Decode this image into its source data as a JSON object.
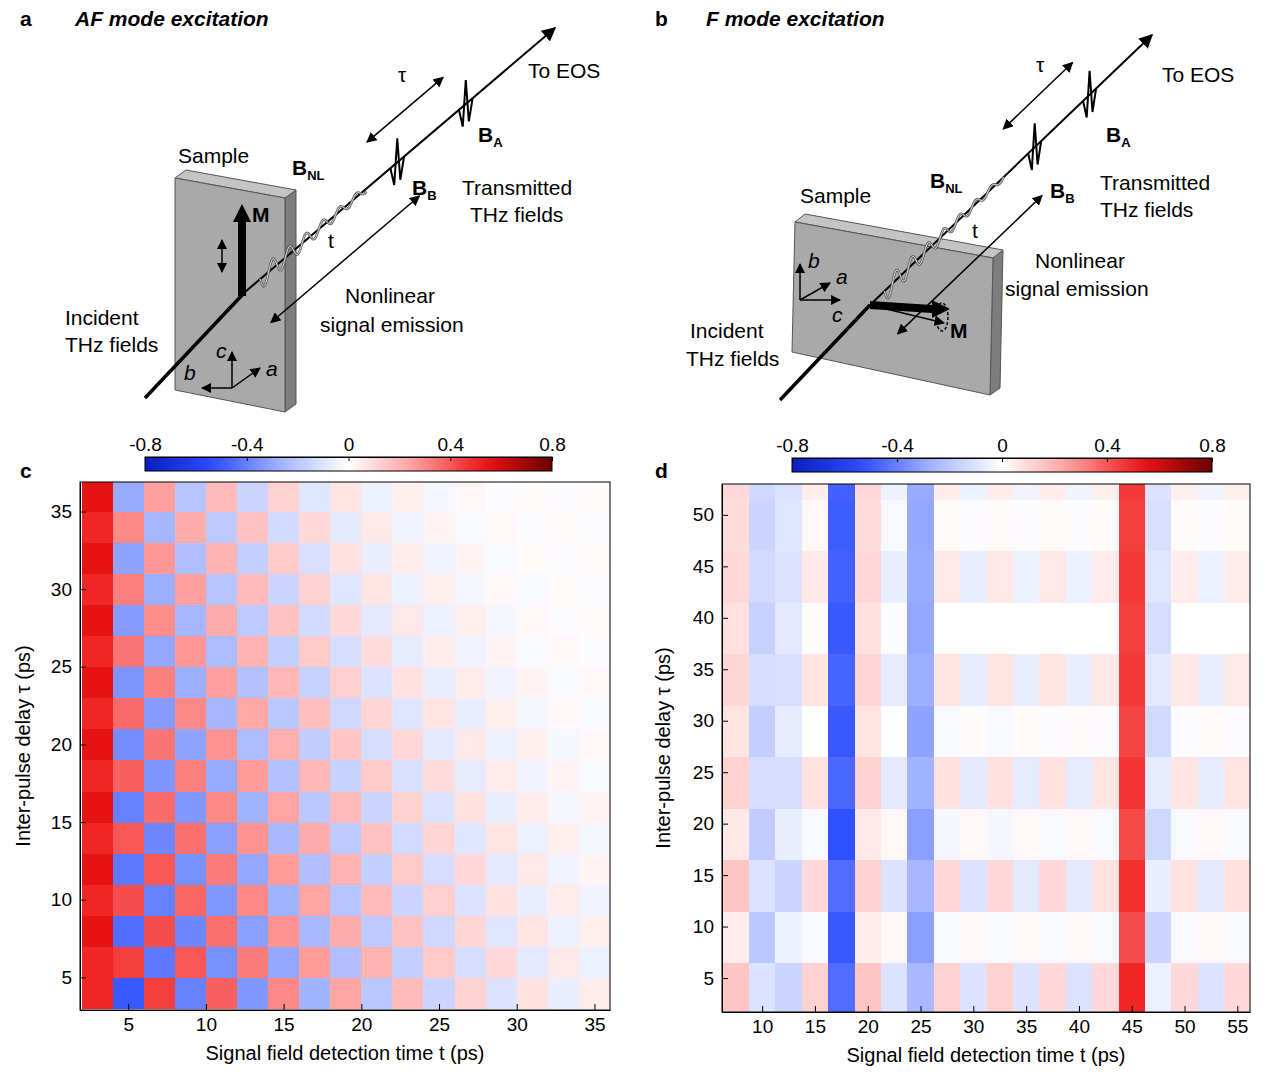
{
  "diagrams": [
    {
      "panel_label": "a",
      "title": "AF mode excitation",
      "sample": "Sample",
      "magnetization": "M",
      "fields": [
        {
          "symbol": "B",
          "sub": "NL"
        },
        {
          "symbol": "B",
          "sub": "B"
        },
        {
          "symbol": "B",
          "sub": "A"
        }
      ],
      "delay": "τ",
      "time": "t",
      "detector": "To EOS",
      "transmitted": [
        "Transmitted",
        "THz fields"
      ],
      "nonlinear": [
        "Nonlinear",
        "signal emission"
      ],
      "incident": [
        "Incident",
        "THz fields"
      ],
      "crystal_axes": [
        "a",
        "b",
        "c"
      ]
    },
    {
      "panel_label": "b",
      "title": "F mode excitation",
      "sample": "Sample",
      "magnetization": "M",
      "fields": [
        {
          "symbol": "B",
          "sub": "NL"
        },
        {
          "symbol": "B",
          "sub": "B"
        },
        {
          "symbol": "B",
          "sub": "A"
        }
      ],
      "delay": "τ",
      "time": "t",
      "detector": "To EOS",
      "transmitted": [
        "Transmitted",
        "THz fields"
      ],
      "nonlinear": [
        "Nonlinear",
        "signal emission"
      ],
      "incident": [
        "Incident",
        "THz fields"
      ],
      "crystal_axes": [
        "a",
        "b",
        "c"
      ]
    }
  ],
  "chart_data": [
    {
      "type": "heatmap",
      "panel_label": "c",
      "x_label": "Signal field detection time t (ps)",
      "y_label": "Inter-pulse delay τ (ps)",
      "xlim": [
        1.9,
        36
      ],
      "ylim": [
        2.9,
        36.9
      ],
      "xticks": [
        5,
        10,
        15,
        20,
        25,
        30,
        35
      ],
      "yticks": [
        5,
        10,
        15,
        20,
        25,
        30,
        35
      ],
      "x": [
        3,
        5,
        7,
        9,
        11,
        13,
        15,
        17,
        19,
        21,
        23,
        25,
        27,
        29,
        31,
        33,
        35
      ],
      "y": [
        4,
        6,
        8,
        10,
        12,
        14,
        16,
        18,
        20,
        22,
        24,
        26,
        28,
        30,
        32,
        34,
        36
      ],
      "values": [
        [
          0.5,
          -0.5,
          0.45,
          -0.4,
          0.38,
          -0.34,
          0.3,
          -0.27,
          0.24,
          -0.2,
          0.18,
          -0.15,
          0.12,
          -0.1,
          0.08,
          -0.06,
          0.05
        ],
        [
          0.5,
          0.45,
          -0.42,
          0.4,
          -0.36,
          0.33,
          -0.3,
          0.26,
          -0.23,
          0.2,
          -0.17,
          0.14,
          -0.12,
          0.1,
          -0.08,
          0.06,
          -0.05
        ],
        [
          0.55,
          -0.45,
          0.42,
          -0.38,
          0.35,
          -0.32,
          0.28,
          -0.25,
          0.22,
          -0.19,
          0.16,
          -0.14,
          0.11,
          -0.09,
          0.07,
          -0.05,
          0.04
        ],
        [
          0.5,
          0.42,
          -0.4,
          0.37,
          -0.34,
          0.3,
          -0.27,
          0.24,
          -0.21,
          0.18,
          -0.15,
          0.13,
          -0.1,
          0.08,
          -0.06,
          0.05,
          -0.04
        ],
        [
          0.55,
          -0.42,
          0.4,
          -0.36,
          0.33,
          -0.3,
          0.26,
          -0.23,
          0.2,
          -0.17,
          0.14,
          -0.12,
          0.1,
          -0.08,
          0.06,
          -0.04,
          0.03
        ],
        [
          0.5,
          0.4,
          -0.38,
          0.35,
          -0.32,
          0.28,
          -0.25,
          0.22,
          -0.19,
          0.16,
          -0.13,
          0.11,
          -0.09,
          0.07,
          -0.05,
          0.04,
          -0.03
        ],
        [
          0.55,
          -0.4,
          0.36,
          -0.34,
          0.3,
          -0.27,
          0.24,
          -0.2,
          0.18,
          -0.15,
          0.12,
          -0.1,
          0.08,
          -0.06,
          0.05,
          -0.03,
          0.03
        ],
        [
          0.5,
          0.38,
          -0.35,
          0.32,
          -0.29,
          0.26,
          -0.22,
          0.19,
          -0.16,
          0.14,
          -0.11,
          0.09,
          -0.07,
          0.05,
          -0.04,
          0.03,
          -0.02
        ],
        [
          0.55,
          -0.37,
          0.34,
          -0.31,
          0.28,
          -0.24,
          0.21,
          -0.18,
          0.15,
          -0.12,
          0.1,
          -0.08,
          0.06,
          -0.05,
          0.04,
          -0.03,
          0.02
        ],
        [
          0.5,
          0.36,
          -0.33,
          0.3,
          -0.26,
          0.23,
          -0.2,
          0.17,
          -0.14,
          0.11,
          -0.09,
          0.07,
          -0.06,
          0.04,
          -0.03,
          0.02,
          -0.02
        ],
        [
          0.55,
          -0.35,
          0.32,
          -0.28,
          0.25,
          -0.22,
          0.19,
          -0.16,
          0.13,
          -0.1,
          0.08,
          -0.06,
          0.05,
          -0.04,
          0.03,
          -0.02,
          0.02
        ],
        [
          0.5,
          0.34,
          -0.3,
          0.27,
          -0.24,
          0.2,
          -0.17,
          0.14,
          -0.12,
          0.09,
          -0.07,
          0.05,
          -0.04,
          0.03,
          -0.02,
          0.02,
          -0.01
        ],
        [
          0.55,
          -0.33,
          0.29,
          -0.26,
          0.22,
          -0.19,
          0.16,
          -0.13,
          0.1,
          -0.08,
          0.06,
          -0.05,
          0.04,
          -0.03,
          0.02,
          -0.01,
          0.01
        ],
        [
          0.5,
          0.32,
          -0.28,
          0.25,
          -0.21,
          0.18,
          -0.15,
          0.12,
          -0.09,
          0.07,
          -0.05,
          0.04,
          -0.03,
          0.02,
          -0.02,
          0.01,
          -0.01
        ],
        [
          0.55,
          -0.31,
          0.27,
          -0.23,
          0.2,
          -0.17,
          0.14,
          -0.11,
          0.08,
          -0.06,
          0.05,
          -0.04,
          0.03,
          -0.02,
          0.01,
          -0.01,
          0.01
        ],
        [
          0.5,
          0.3,
          -0.26,
          0.22,
          -0.19,
          0.16,
          -0.13,
          0.1,
          -0.08,
          0.06,
          -0.04,
          0.03,
          -0.02,
          0.02,
          -0.01,
          0.01,
          -0.01
        ],
        [
          0.55,
          -0.29,
          0.25,
          -0.21,
          0.18,
          -0.15,
          0.12,
          -0.09,
          0.07,
          -0.05,
          0.04,
          -0.03,
          0.02,
          -0.01,
          0.01,
          -0.01,
          0.01
        ]
      ],
      "colorbar": {
        "range": [
          -0.8,
          0.8
        ],
        "ticks": [
          -0.8,
          -0.4,
          0,
          0.4,
          0.8
        ]
      }
    },
    {
      "type": "heatmap",
      "panel_label": "d",
      "x_label": "Signal field detection time t (ps)",
      "y_label": "Inter-pulse delay τ (ps)",
      "xlim": [
        6.2,
        56.2
      ],
      "ylim": [
        1.7,
        53
      ],
      "xticks": [
        10,
        15,
        20,
        25,
        30,
        35,
        40,
        45,
        50,
        55
      ],
      "yticks": [
        5,
        10,
        15,
        20,
        25,
        30,
        35,
        40,
        45,
        50
      ],
      "x": [
        7.5,
        10,
        12.5,
        15,
        17.5,
        20,
        22.5,
        25,
        27.5,
        30,
        32.5,
        35,
        37.5,
        40,
        42.5,
        45,
        47.5,
        50,
        52.5,
        55
      ],
      "y": [
        4,
        9,
        14,
        19,
        24,
        29,
        34,
        39,
        44,
        49,
        54
      ],
      "values": [
        [
          0.15,
          -0.1,
          -0.15,
          0.12,
          -0.45,
          0.15,
          -0.1,
          -0.25,
          0.12,
          -0.1,
          0.12,
          -0.1,
          0.1,
          -0.1,
          0.1,
          0.5,
          -0.05,
          0.1,
          -0.1,
          0.1
        ],
        [
          0.05,
          -0.2,
          -0.05,
          -0.02,
          -0.5,
          0.05,
          0.02,
          -0.32,
          -0.02,
          0.02,
          -0.02,
          0.02,
          -0.02,
          0.02,
          -0.02,
          0.42,
          -0.15,
          -0.02,
          0.02,
          -0.02
        ],
        [
          0.15,
          -0.1,
          -0.15,
          0.1,
          -0.45,
          0.12,
          -0.1,
          -0.26,
          0.1,
          -0.1,
          0.1,
          -0.08,
          0.1,
          -0.08,
          0.08,
          0.48,
          -0.06,
          0.08,
          -0.08,
          0.08
        ],
        [
          0.06,
          -0.18,
          -0.06,
          -0.02,
          -0.52,
          0.06,
          0.02,
          -0.32,
          -0.03,
          0.02,
          -0.03,
          0.02,
          -0.02,
          0.02,
          -0.02,
          0.43,
          -0.14,
          -0.02,
          0.02,
          -0.02
        ],
        [
          0.12,
          -0.12,
          -0.12,
          0.08,
          -0.46,
          0.12,
          -0.08,
          -0.27,
          0.08,
          -0.08,
          0.08,
          -0.07,
          0.08,
          -0.07,
          0.07,
          0.47,
          -0.07,
          0.07,
          -0.07,
          0.07
        ],
        [
          0.07,
          -0.17,
          -0.07,
          0,
          -0.5,
          0.07,
          0,
          -0.31,
          -0.02,
          0.01,
          -0.02,
          0.01,
          -0.01,
          0.01,
          -0.01,
          0.44,
          -0.13,
          -0.01,
          0.01,
          -0.01
        ],
        [
          0.11,
          -0.12,
          -0.11,
          0.07,
          -0.47,
          0.11,
          -0.07,
          -0.28,
          0.07,
          -0.07,
          0.07,
          -0.06,
          0.07,
          -0.06,
          0.06,
          0.46,
          -0.08,
          0.06,
          -0.06,
          0.06
        ],
        [
          0.08,
          -0.16,
          -0.08,
          0.01,
          -0.5,
          0.08,
          -0.01,
          -0.3,
          0,
          0,
          0,
          0,
          0,
          0,
          0,
          0.45,
          -0.12,
          0,
          0,
          0
        ],
        [
          0.1,
          -0.13,
          -0.1,
          0.06,
          -0.48,
          0.1,
          -0.06,
          -0.29,
          0.06,
          -0.06,
          0.06,
          -0.05,
          0.06,
          -0.05,
          0.05,
          0.46,
          -0.09,
          0.05,
          -0.05,
          0.05
        ],
        [
          0.09,
          -0.15,
          -0.09,
          0.02,
          -0.49,
          0.09,
          -0.02,
          -0.3,
          0.01,
          -0.01,
          0.01,
          -0.01,
          0.01,
          -0.01,
          0.01,
          0.45,
          -0.11,
          0.01,
          -0.01,
          0.01
        ],
        [
          0.1,
          -0.14,
          -0.1,
          0.05,
          -0.48,
          0.1,
          -0.05,
          -0.29,
          0.05,
          -0.05,
          0.05,
          -0.04,
          0.05,
          -0.04,
          0.04,
          0.46,
          -0.1,
          0.04,
          -0.04,
          0.04
        ]
      ],
      "colorbar": {
        "range": [
          -0.8,
          0.8
        ],
        "ticks": [
          -0.8,
          -0.4,
          0,
          0.4,
          0.8
        ]
      }
    }
  ]
}
